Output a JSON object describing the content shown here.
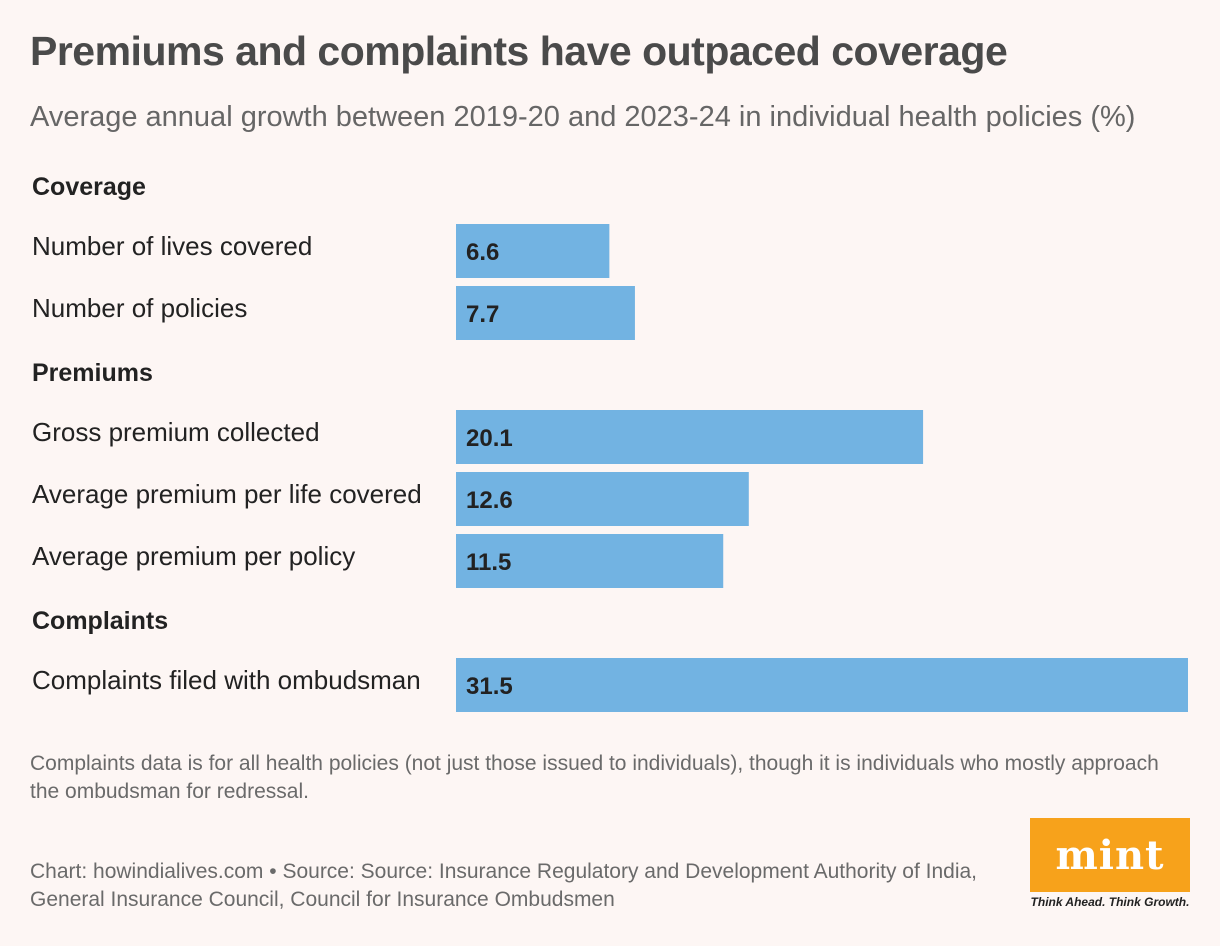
{
  "header": {
    "title": "Premiums and complaints have outpaced coverage",
    "subtitle": "Average annual growth between 2019-20 and 2023-24 in individual health policies (%)"
  },
  "chart_data": {
    "type": "bar",
    "orientation": "horizontal",
    "bar_color": "#72b3e2",
    "xlim": [
      0,
      31.5
    ],
    "groups": [
      {
        "name": "Coverage",
        "items": [
          {
            "label": "Number of lives covered",
            "value": 6.6,
            "value_label": "6.6"
          },
          {
            "label": "Number of policies",
            "value": 7.7,
            "value_label": "7.7"
          }
        ]
      },
      {
        "name": "Premiums",
        "items": [
          {
            "label": "Gross premium collected",
            "value": 20.1,
            "value_label": "20.1"
          },
          {
            "label": "Average premium per life covered",
            "value": 12.6,
            "value_label": "12.6"
          },
          {
            "label": "Average premium per policy",
            "value": 11.5,
            "value_label": "11.5"
          }
        ]
      },
      {
        "name": "Complaints",
        "items": [
          {
            "label": "Complaints filed with ombudsman",
            "value": 31.5,
            "value_label": "31.5"
          }
        ]
      }
    ]
  },
  "footnote": "Complaints data is for all health policies (not just those issued to individuals), though it is individuals who mostly approach the ombudsman for redressal.",
  "credit": "Chart: howindialives.com • Source: Source: Insurance Regulatory and Development Authority of India, General Insurance Council, Council for Insurance Ombudsmen",
  "logo": {
    "text": "mint",
    "tagline": "Think Ahead. Think Growth.",
    "color": "#f7a21b"
  }
}
